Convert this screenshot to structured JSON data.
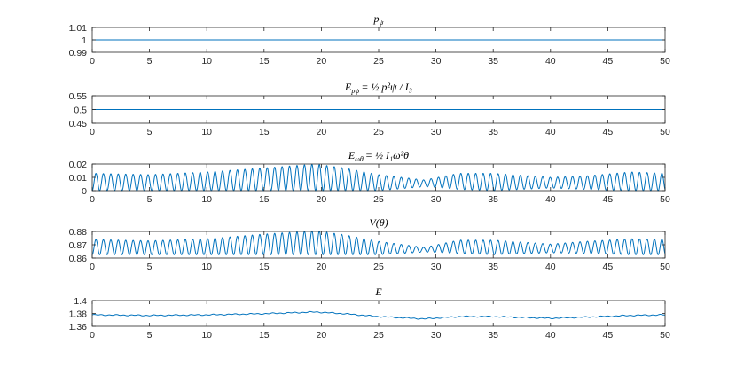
{
  "colors": {
    "series": "#0072BD",
    "axis": "#262626",
    "background": "#ffffff"
  },
  "chart_data": [
    {
      "type": "line",
      "title": "p_ψ",
      "title_parts": {
        "main": "p",
        "sub": "ψ"
      },
      "xlim": [
        0,
        50
      ],
      "ylim": [
        0.99,
        1.01
      ],
      "xticks": [
        "0",
        "5",
        "10",
        "15",
        "20",
        "25",
        "30",
        "35",
        "40",
        "45",
        "50"
      ],
      "yticks": [
        "1.01",
        "1",
        "0.99"
      ],
      "series": [
        {
          "kind": "constant",
          "value": 1.0
        }
      ]
    },
    {
      "type": "line",
      "title": "E_{p_ψ} = ½ p_ψ²/I_3",
      "title_parts": {
        "lhs_main": "E",
        "lhs_sub": "pψ",
        "rhs": "= ½ p²ψ / I₃"
      },
      "xlim": [
        0,
        50
      ],
      "ylim": [
        0.45,
        0.55
      ],
      "xticks": [
        "0",
        "5",
        "10",
        "15",
        "20",
        "25",
        "30",
        "35",
        "40",
        "45",
        "50"
      ],
      "yticks": [
        "0.55",
        "0.5",
        "0.45"
      ],
      "series": [
        {
          "kind": "constant",
          "value": 0.5
        }
      ]
    },
    {
      "type": "line",
      "title": "E_{ω_θ} = ½ I_1 ω_θ²",
      "title_parts": {
        "lhs_main": "E",
        "lhs_sub": "ωθ",
        "rhs": "= ½ I₁ω²θ"
      },
      "xlim": [
        0,
        50
      ],
      "ylim": [
        0,
        0.02
      ],
      "xticks": [
        "0",
        "5",
        "10",
        "15",
        "20",
        "25",
        "30",
        "35",
        "40",
        "45",
        "50"
      ],
      "yticks": [
        "0.02",
        "0.01",
        "0"
      ],
      "series": [
        {
          "kind": "oscillation",
          "period": 0.65,
          "baseline": 0.0,
          "envelope_x": [
            0,
            5,
            10,
            15,
            19.5,
            22,
            25,
            29,
            32,
            35,
            40,
            43,
            47,
            50
          ],
          "envelope_y": [
            0.013,
            0.012,
            0.014,
            0.017,
            0.02,
            0.017,
            0.012,
            0.005,
            0.012,
            0.013,
            0.008,
            0.01,
            0.014,
            0.013
          ],
          "offset_y": [
            0,
            0,
            0,
            0,
            0,
            0,
            0,
            0.003,
            0.001,
            0,
            0.002,
            0.001,
            0,
            0
          ]
        }
      ]
    },
    {
      "type": "line",
      "title": "V(θ)",
      "title_parts": {
        "main": "V(θ)"
      },
      "xlim": [
        0,
        50
      ],
      "ylim": [
        0.86,
        0.88
      ],
      "xticks": [
        "0",
        "5",
        "10",
        "15",
        "20",
        "25",
        "30",
        "35",
        "40",
        "45",
        "50"
      ],
      "yticks": [
        "0.88",
        "0.87",
        "0.86"
      ],
      "series": [
        {
          "kind": "oscillation",
          "period": 0.65,
          "baseline": 0.8625,
          "envelope_x": [
            0,
            5,
            10,
            15,
            19.5,
            22,
            25,
            29,
            32,
            35,
            40,
            43,
            47,
            50
          ],
          "envelope_y": [
            0.0115,
            0.0105,
            0.012,
            0.0155,
            0.018,
            0.015,
            0.01,
            0.0035,
            0.01,
            0.011,
            0.0065,
            0.009,
            0.012,
            0.0115
          ],
          "offset_y": [
            0,
            0,
            0,
            0,
            0,
            0,
            0,
            0.002,
            0.001,
            0,
            0.0015,
            0.001,
            0,
            0
          ]
        }
      ]
    },
    {
      "type": "line",
      "title": "E",
      "title_parts": {
        "main": "E"
      },
      "xlim": [
        0,
        50
      ],
      "ylim": [
        1.355,
        1.4
      ],
      "xticks": [
        "0",
        "5",
        "10",
        "15",
        "20",
        "25",
        "30",
        "35",
        "40",
        "45",
        "50"
      ],
      "yticks": [
        "1.4",
        "1.38",
        "1.36"
      ],
      "series": [
        {
          "kind": "trend",
          "trend_x": [
            0,
            5,
            10,
            15,
            19.5,
            22,
            25,
            29,
            32,
            35,
            40,
            43,
            47,
            50
          ],
          "trend_y": [
            1.375,
            1.374,
            1.375,
            1.377,
            1.38,
            1.377,
            1.372,
            1.368,
            1.372,
            1.372,
            1.369,
            1.371,
            1.374,
            1.375
          ],
          "ripple": 0.0012
        }
      ]
    }
  ]
}
